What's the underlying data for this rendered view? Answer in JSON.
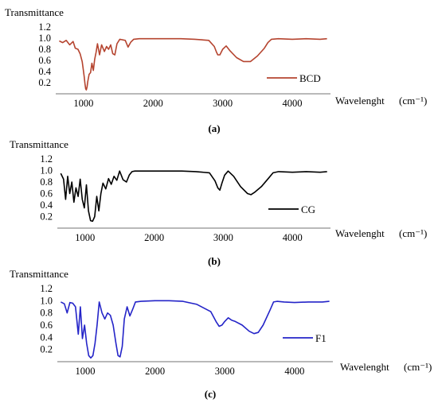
{
  "chart_data": [
    {
      "type": "line",
      "panel_label": "(a)",
      "ylabel": "Transmittance",
      "xlabel": "Wavelenght",
      "xunit": "(cm⁻¹)",
      "xlim": [
        600,
        4550
      ],
      "ylim": [
        0,
        1.2
      ],
      "x_ticks": [
        "1000",
        "2000",
        "3000",
        "4000"
      ],
      "y_ticks": [
        "0.2",
        "0.4",
        "0.6",
        "0.8",
        "1.0",
        "1.2"
      ],
      "grid": false,
      "legend_position": "right",
      "series": [
        {
          "name": "BCD",
          "color": "#b5442f",
          "x": [
            650,
            700,
            750,
            800,
            850,
            880,
            920,
            950,
            980,
            1000,
            1010,
            1020,
            1030,
            1040,
            1050,
            1060,
            1080,
            1100,
            1120,
            1140,
            1160,
            1180,
            1200,
            1230,
            1260,
            1300,
            1330,
            1360,
            1390,
            1420,
            1450,
            1480,
            1520,
            1600,
            1640,
            1680,
            1720,
            1800,
            2000,
            2200,
            2400,
            2600,
            2800,
            2880,
            2910,
            2930,
            2960,
            3000,
            3050,
            3100,
            3200,
            3300,
            3400,
            3500,
            3600,
            3650,
            3700,
            3800,
            4000,
            4200,
            4400,
            4500
          ],
          "y": [
            0.95,
            0.92,
            0.96,
            0.88,
            0.94,
            0.82,
            0.8,
            0.72,
            0.58,
            0.4,
            0.3,
            0.18,
            0.09,
            0.07,
            0.12,
            0.22,
            0.35,
            0.38,
            0.55,
            0.42,
            0.62,
            0.75,
            0.9,
            0.7,
            0.88,
            0.76,
            0.85,
            0.8,
            0.88,
            0.72,
            0.7,
            0.9,
            0.98,
            0.96,
            0.84,
            0.93,
            0.98,
            0.99,
            0.99,
            0.99,
            0.99,
            0.98,
            0.96,
            0.85,
            0.75,
            0.7,
            0.7,
            0.8,
            0.86,
            0.78,
            0.65,
            0.58,
            0.58,
            0.68,
            0.82,
            0.92,
            0.98,
            0.99,
            0.98,
            0.99,
            0.98,
            0.99
          ]
        }
      ]
    },
    {
      "type": "line",
      "panel_label": "(b)",
      "ylabel": "Transmittance",
      "xlabel": "Wavelenght",
      "xunit": "(cm⁻¹)",
      "xlim": [
        600,
        4550
      ],
      "ylim": [
        0,
        1.2
      ],
      "x_ticks": [
        "1000",
        "2000",
        "3000",
        "4000"
      ],
      "y_ticks": [
        "0.2",
        "0.4",
        "0.6",
        "0.8",
        "1.0",
        "1.2"
      ],
      "grid": false,
      "legend_position": "right",
      "series": [
        {
          "name": "CG",
          "color": "#000000",
          "x": [
            650,
            690,
            720,
            750,
            780,
            810,
            840,
            870,
            900,
            930,
            960,
            990,
            1020,
            1050,
            1080,
            1110,
            1140,
            1170,
            1200,
            1230,
            1260,
            1300,
            1340,
            1380,
            1420,
            1460,
            1500,
            1550,
            1600,
            1640,
            1680,
            1720,
            1800,
            2000,
            2200,
            2400,
            2600,
            2800,
            2880,
            2920,
            2950,
            2980,
            3020,
            3070,
            3150,
            3250,
            3350,
            3400,
            3450,
            3550,
            3650,
            3720,
            3800,
            4000,
            4200,
            4400,
            4500
          ],
          "y": [
            0.95,
            0.85,
            0.5,
            0.9,
            0.6,
            0.8,
            0.45,
            0.7,
            0.55,
            0.85,
            0.5,
            0.35,
            0.75,
            0.3,
            0.13,
            0.12,
            0.2,
            0.55,
            0.3,
            0.6,
            0.78,
            0.68,
            0.86,
            0.76,
            0.9,
            0.83,
            0.99,
            0.84,
            0.8,
            0.92,
            0.98,
            0.99,
            0.99,
            0.99,
            0.99,
            0.99,
            0.98,
            0.96,
            0.82,
            0.7,
            0.66,
            0.78,
            0.92,
            0.99,
            0.9,
            0.72,
            0.6,
            0.58,
            0.62,
            0.72,
            0.86,
            0.96,
            0.98,
            0.97,
            0.98,
            0.97,
            0.98
          ]
        }
      ]
    },
    {
      "type": "line",
      "panel_label": "(c)",
      "ylabel": "Transmittance",
      "xlabel": "Wavelenght",
      "xunit": "(cm⁻¹)",
      "xlim": [
        600,
        4550
      ],
      "ylim": [
        0,
        1.2
      ],
      "x_ticks": [
        "1000",
        "2000",
        "3000",
        "4000"
      ],
      "y_ticks": [
        "0.2",
        "0.4",
        "0.6",
        "0.8",
        "1.0",
        "1.2"
      ],
      "grid": false,
      "legend_position": "right",
      "series": [
        {
          "name": "F1",
          "color": "#2424c8",
          "x": [
            650,
            700,
            740,
            780,
            820,
            860,
            900,
            930,
            960,
            990,
            1020,
            1050,
            1080,
            1110,
            1140,
            1170,
            1200,
            1240,
            1280,
            1320,
            1360,
            1400,
            1440,
            1470,
            1500,
            1530,
            1560,
            1600,
            1640,
            1680,
            1720,
            1800,
            2000,
            2200,
            2400,
            2600,
            2800,
            2880,
            2920,
            2960,
            3000,
            3050,
            3100,
            3150,
            3250,
            3350,
            3420,
            3480,
            3550,
            3650,
            3700,
            3750,
            3850,
            4000,
            4200,
            4400,
            4500
          ],
          "y": [
            0.98,
            0.95,
            0.8,
            0.97,
            0.96,
            0.9,
            0.45,
            0.9,
            0.38,
            0.6,
            0.3,
            0.1,
            0.06,
            0.1,
            0.3,
            0.6,
            0.98,
            0.8,
            0.7,
            0.8,
            0.76,
            0.6,
            0.3,
            0.1,
            0.08,
            0.25,
            0.7,
            0.9,
            0.75,
            0.86,
            0.98,
            0.99,
            1.0,
            1.0,
            0.99,
            0.94,
            0.82,
            0.65,
            0.58,
            0.6,
            0.66,
            0.72,
            0.68,
            0.66,
            0.6,
            0.5,
            0.46,
            0.48,
            0.6,
            0.85,
            0.98,
            0.99,
            0.98,
            0.97,
            0.98,
            0.98,
            0.99
          ]
        }
      ]
    }
  ]
}
